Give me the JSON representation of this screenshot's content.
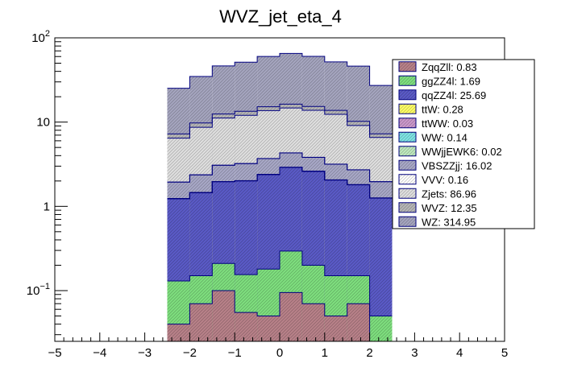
{
  "chart_data": {
    "type": "bar",
    "stacked": true,
    "title": "WVZ_jet_eta_4",
    "xlabel": "",
    "ylabel": "",
    "xlim": [
      -5,
      5
    ],
    "ylim": [
      0.025,
      100
    ],
    "log_y": true,
    "grid": false,
    "legend_position": "top-right",
    "x_ticks": [
      "−5",
      "−4",
      "−3",
      "−2",
      "−1",
      "0",
      "1",
      "2",
      "3",
      "4",
      "5"
    ],
    "y_ticks": [
      {
        "value": 0.1,
        "base": "10",
        "exp": "−1"
      },
      {
        "value": 1,
        "base": "1",
        "exp": ""
      },
      {
        "value": 10,
        "base": "10",
        "exp": ""
      },
      {
        "value": 100,
        "base": "10",
        "exp": "2"
      }
    ],
    "bin_edges": [
      -2.5,
      -2.0,
      -1.5,
      -1.0,
      -0.5,
      0.0,
      0.5,
      1.0,
      1.5,
      2.0,
      2.5
    ],
    "series": [
      {
        "name": "ZqqZll: 0.83",
        "color": "#b9828a",
        "values": [
          0.04,
          0.07,
          0.1,
          0.055,
          0.05,
          0.095,
          0.07,
          0.05,
          0.07,
          0.0
        ]
      },
      {
        "name": "ggZZ4l: 1.69",
        "color": "#7fe07f",
        "values": [
          0.09,
          0.08,
          0.11,
          0.1,
          0.13,
          0.2,
          0.13,
          0.1,
          0.08,
          0.05
        ]
      },
      {
        "name": "qqZZ4l: 25.69",
        "color": "#5b5bc8",
        "values": [
          1.1,
          1.3,
          1.75,
          1.85,
          2.2,
          2.6,
          2.4,
          1.9,
          1.65,
          1.2
        ]
      },
      {
        "name": "ttW: 0.28",
        "color": "#ffff66",
        "values": [
          0.004,
          0.006,
          0.007,
          0.007,
          0.007,
          0.007,
          0.007,
          0.007,
          0.006,
          0.005
        ]
      },
      {
        "name": "ttWW: 0.03",
        "color": "#cc99cc",
        "values": [
          0.001,
          0.001,
          0.001,
          0.001,
          0.001,
          0.001,
          0.001,
          0.001,
          0.001,
          0.001
        ]
      },
      {
        "name": "WW: 0.14",
        "color": "#7fe5e5",
        "values": [
          0.003,
          0.003,
          0.003,
          0.003,
          0.003,
          0.003,
          0.003,
          0.003,
          0.003,
          0.003
        ]
      },
      {
        "name": "WWjjEWK6: 0.02",
        "color": "#bfeabf",
        "values": [
          0.001,
          0.001,
          0.001,
          0.001,
          0.001,
          0.001,
          0.001,
          0.001,
          0.001,
          0.001
        ]
      },
      {
        "name": "VBSZZjj: 16.02",
        "color": "#a9a9c8",
        "values": [
          0.7,
          0.9,
          1.1,
          1.2,
          1.3,
          1.4,
          1.2,
          1.1,
          0.9,
          0.7
        ]
      },
      {
        "name": "VVV: 0.16",
        "color": "#ffffff",
        "values": [
          0.004,
          0.005,
          0.006,
          0.006,
          0.006,
          0.006,
          0.006,
          0.006,
          0.005,
          0.004
        ]
      },
      {
        "name": "Zjets: 86.96",
        "color": "#e0e0e0",
        "values": [
          4.5,
          6.3,
          8.1,
          8.8,
          10.0,
          10.4,
          10.0,
          9.2,
          6.4,
          4.6
        ]
      },
      {
        "name": "WVZ: 12.35",
        "color": "#b7b7b7",
        "values": [
          0.8,
          1.1,
          1.3,
          1.4,
          1.5,
          1.6,
          1.5,
          1.4,
          1.1,
          0.7
        ]
      },
      {
        "name": "WZ: 314.95",
        "color": "#a6a6c0",
        "values": [
          18.0,
          25.0,
          34.0,
          38.0,
          45.0,
          49.0,
          45.0,
          38.0,
          36.0,
          20.0
        ]
      }
    ]
  }
}
